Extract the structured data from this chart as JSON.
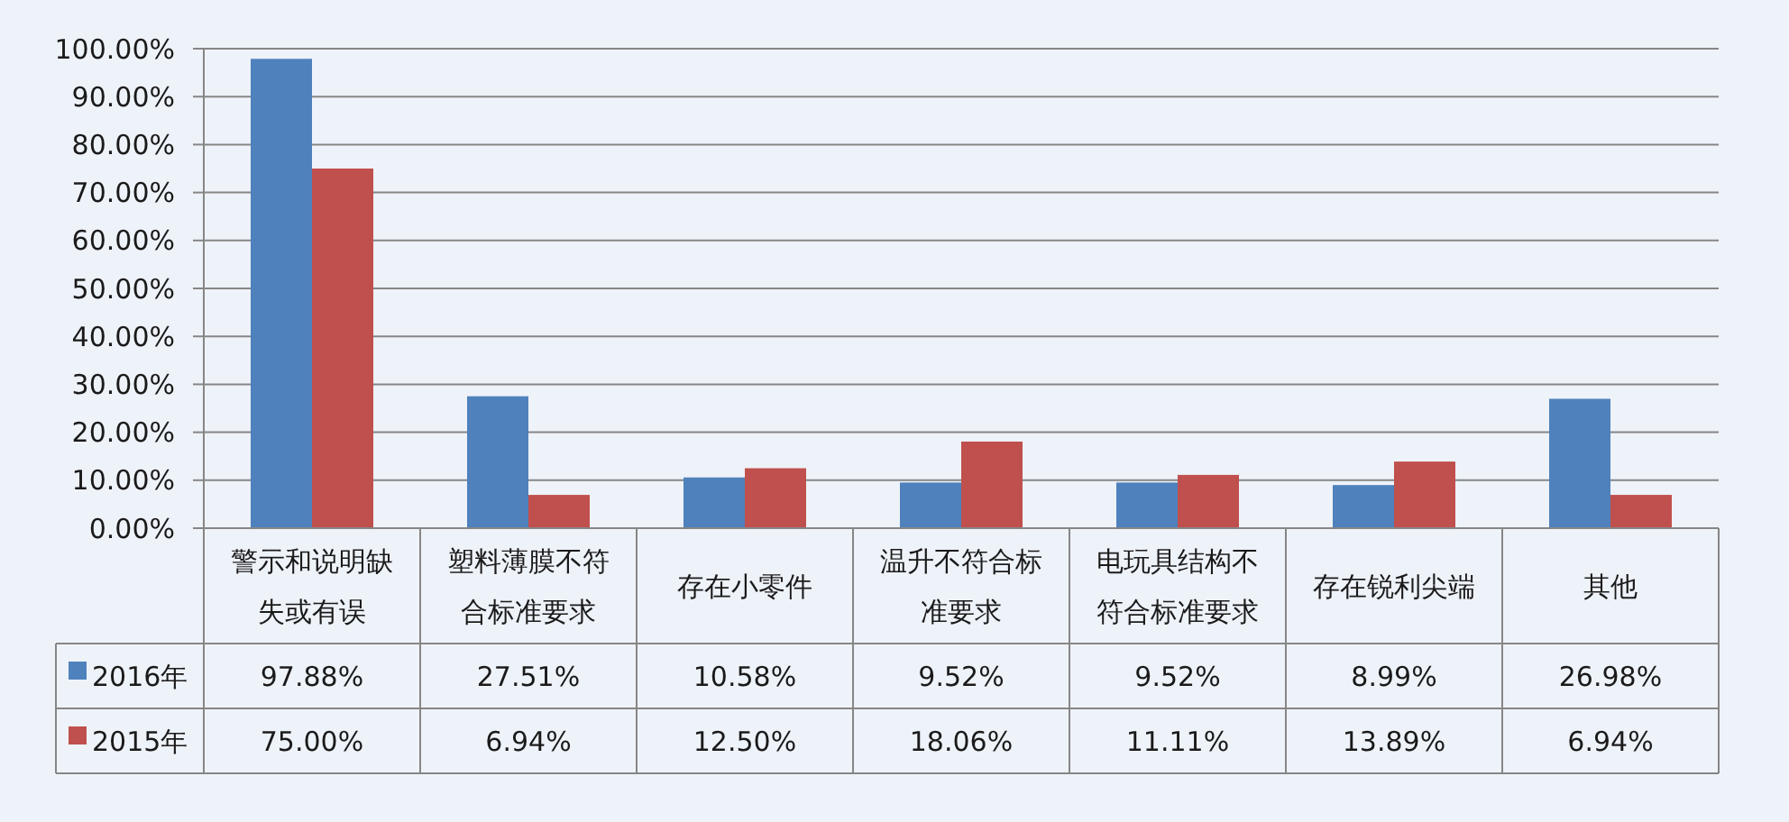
{
  "chart_data": {
    "type": "bar",
    "categories": [
      "警示和说明缺失或有误",
      "塑料薄膜不符合标准要求",
      "存在小零件",
      "温升不符合标准要求",
      "电玩具结构不符合标准要求",
      "存在锐利尖端",
      "其他"
    ],
    "series": [
      {
        "name": "2016年",
        "color": "#4f81bd",
        "values": [
          97.88,
          27.51,
          10.58,
          9.52,
          9.52,
          8.99,
          26.98
        ],
        "value_labels": [
          "97.88%",
          "27.51%",
          "10.58%",
          "9.52%",
          "9.52%",
          "8.99%",
          "26.98%"
        ]
      },
      {
        "name": "2015年",
        "color": "#c0504d",
        "values": [
          75.0,
          6.94,
          12.5,
          18.06,
          11.11,
          13.89,
          6.94
        ],
        "value_labels": [
          "75.00%",
          "6.94%",
          "12.50%",
          "18.06%",
          "11.11%",
          "13.89%",
          "6.94%"
        ]
      }
    ],
    "ylim": [
      0,
      100
    ],
    "yticks": [
      {
        "value": 0,
        "label": "0.00%"
      },
      {
        "value": 10,
        "label": "10.00%"
      },
      {
        "value": 20,
        "label": "20.00%"
      },
      {
        "value": 30,
        "label": "30.00%"
      },
      {
        "value": 40,
        "label": "40.00%"
      },
      {
        "value": 50,
        "label": "50.00%"
      },
      {
        "value": 60,
        "label": "60.00%"
      },
      {
        "value": 70,
        "label": "70.00%"
      },
      {
        "value": 80,
        "label": "80.00%"
      },
      {
        "value": 90,
        "label": "90.00%"
      },
      {
        "value": 100,
        "label": "100.00%"
      }
    ],
    "grid": "y",
    "legend": "bottom"
  }
}
